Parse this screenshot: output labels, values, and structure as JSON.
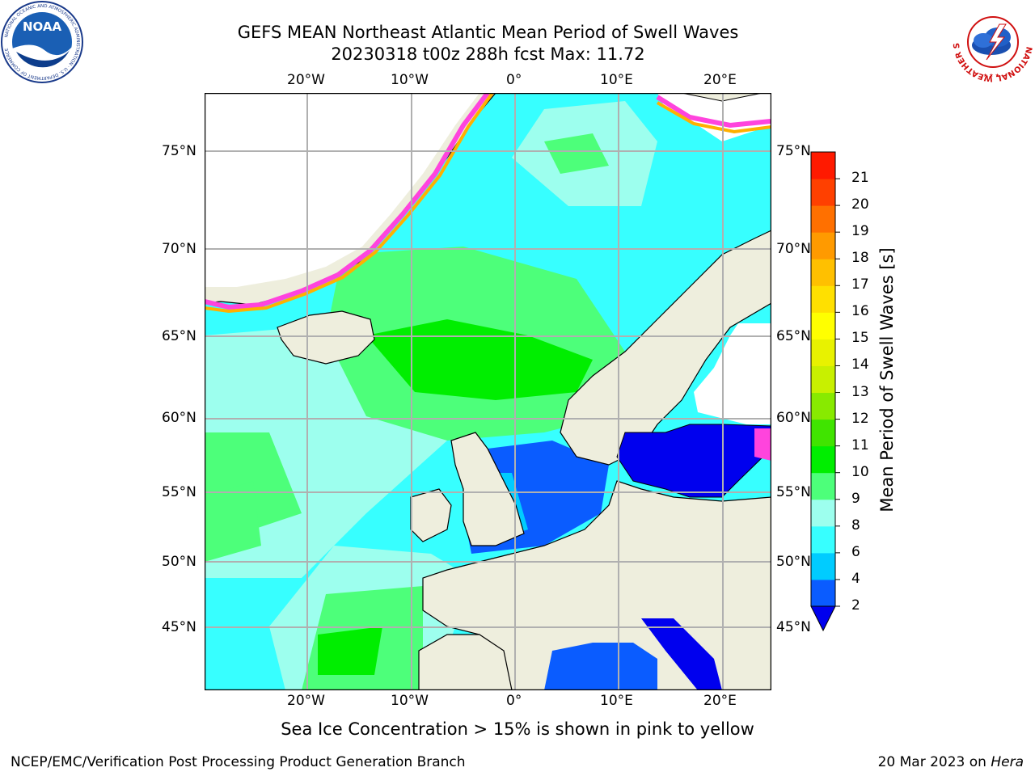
{
  "header": {
    "title_line1": "GEFS MEAN Northeast Atlantic Mean Period of Swell Waves",
    "title_line2": "20230318 t00z 288h fcst   Max: 11.72"
  },
  "logos": {
    "noaa_text": "NOAA",
    "noaa_ring_text": "NATIONAL OCEANIC AND ATMOSPHERIC ADMINISTRATION · U.S. DEPARTMENT OF COMMERCE",
    "nws_ring_text": "NATIONAL WEATHER SERVICE"
  },
  "map": {
    "lon_labels": [
      "20°W",
      "10°W",
      "0°",
      "10°E",
      "20°E"
    ],
    "lat_labels": [
      "75°N",
      "70°N",
      "65°N",
      "60°N",
      "55°N",
      "50°N",
      "45°N"
    ],
    "colors": {
      "ocean": "#37ffff",
      "land": "#eeeedd",
      "ice_free_land_white": "#ffffff",
      "grid": "#b0b0b0"
    }
  },
  "colorbar": {
    "label": "Mean Period of Swell Waves [s]",
    "ticks": [
      "2",
      "4",
      "6",
      "8",
      "9",
      "10",
      "11",
      "12",
      "13",
      "14",
      "15",
      "16",
      "17",
      "18",
      "19",
      "20",
      "21"
    ],
    "colors": [
      "#0a5cff",
      "#00ccff",
      "#37ffff",
      "#9dffee",
      "#4dff7a",
      "#00ee00",
      "#40e400",
      "#88ea00",
      "#c8f000",
      "#e8f200",
      "#ffff00",
      "#ffe000",
      "#ffc000",
      "#ff9a00",
      "#ff7000",
      "#ff4000",
      "#ff1a00"
    ],
    "under_color": "#0000ee"
  },
  "caption": "Sea Ice Concentration > 15% is shown in pink to yellow",
  "footer": {
    "left": "NCEP/EMC/Verification Post Processing Product Generation Branch",
    "right_prefix": "20 Mar 2023 on ",
    "right_machine": "Hera"
  }
}
